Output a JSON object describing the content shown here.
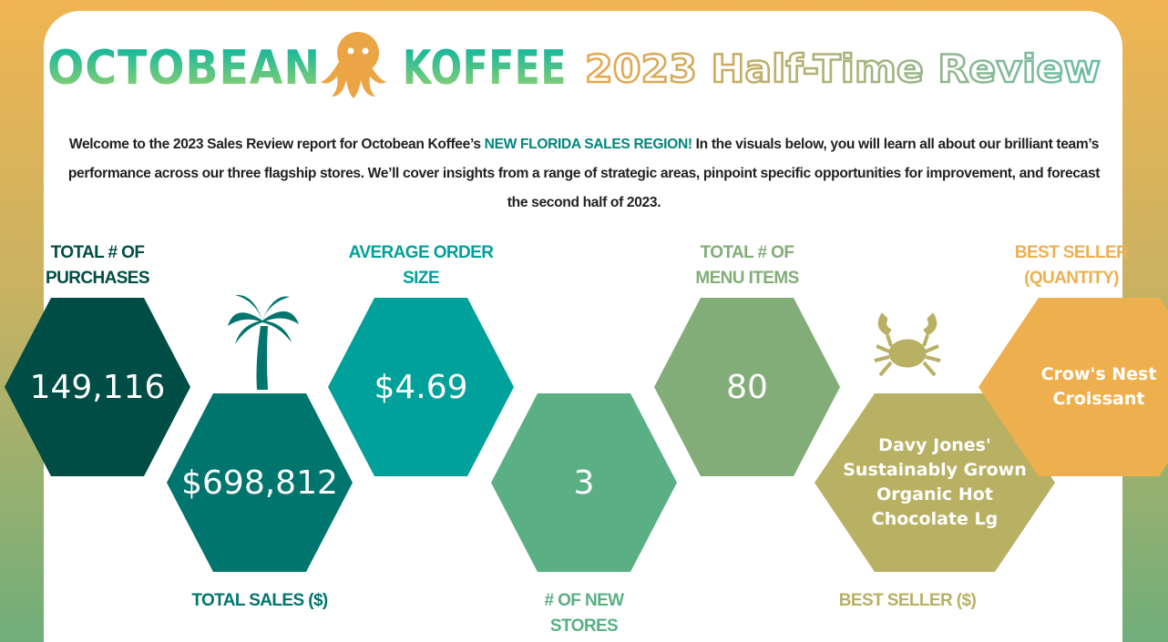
{
  "header": {
    "brand_left": "OCTOBEAN",
    "brand_right": "KOFFEE",
    "title": "2023 Half-Time Review"
  },
  "intro": {
    "before": "Welcome to the 2023 Sales Review report for Octobean Koffee’s ",
    "highlight": "NEW FLORIDA SALES REGION!",
    "after": " In the visuals below, you will learn all about our brilliant team’s performance across our three flagship stores. We’ll cover insights from a range of strategic areas, pinpoint specific opportunities for improvement, and forecast the second half of 2023."
  },
  "kpis": [
    {
      "label": "TOTAL # OF PURCHASES",
      "value": "149,116"
    },
    {
      "label": "TOTAL SALES ($)",
      "value": "$698,812"
    },
    {
      "label": "AVERAGE ORDER SIZE",
      "value": "$4.69"
    },
    {
      "label": "# OF NEW STORES",
      "value": "3"
    },
    {
      "label": "TOTAL # OF MENU ITEMS",
      "value": "80"
    },
    {
      "label": "BEST SELLER ($)",
      "value": "Davy Jones' Sustainably Grown Organic Hot Chocolate Lg"
    },
    {
      "label": "BEST SELLER (QUANTITY)",
      "value": "Crow's Nest Croissant"
    }
  ]
}
